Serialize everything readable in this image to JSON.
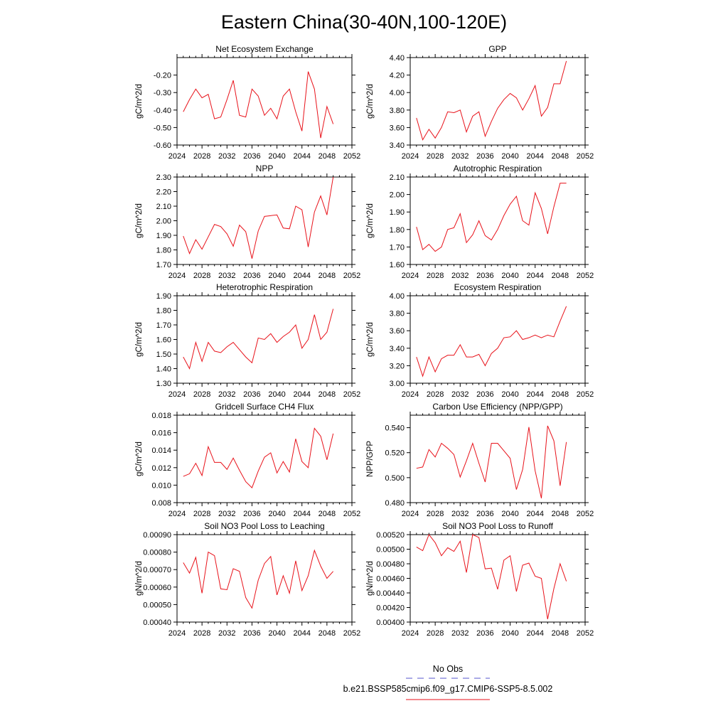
{
  "figure": {
    "title": "Eastern China(30-40N,100-120E)",
    "legend": {
      "obs_label": "No Obs",
      "obs_color": "#5555cc",
      "model_label": "b.e21.BSSP585cmip6.f09_g17.CMIP6-SSP5-8.5.002",
      "model_color": "#e8121a"
    }
  },
  "chart_data": [
    {
      "type": "line",
      "title": "Net Ecosystem Exchange",
      "ylabel": "gC/m^2/d",
      "xlim": [
        2024,
        2052
      ],
      "ylim": [
        -0.6,
        -0.1
      ],
      "xticks": [
        "2024",
        "2028",
        "2032",
        "2036",
        "2040",
        "2044",
        "2048",
        "2052"
      ],
      "yticks": [
        "-0.60",
        "-0.50",
        "-0.40",
        "-0.30",
        "-0.20"
      ],
      "ytick_values": [
        -0.6,
        -0.5,
        -0.4,
        -0.3,
        -0.2
      ],
      "x": [
        2025,
        2026,
        2027,
        2028,
        2029,
        2030,
        2031,
        2032,
        2033,
        2034,
        2035,
        2036,
        2037,
        2038,
        2039,
        2040,
        2041,
        2042,
        2043,
        2044,
        2045,
        2046,
        2047,
        2048,
        2049
      ],
      "series": [
        {
          "values": [
            -0.41,
            -0.34,
            -0.28,
            -0.33,
            -0.31,
            -0.45,
            -0.44,
            -0.34,
            -0.23,
            -0.43,
            -0.44,
            -0.28,
            -0.32,
            -0.43,
            -0.39,
            -0.45,
            -0.32,
            -0.28,
            -0.41,
            -0.52,
            -0.18,
            -0.28,
            -0.56,
            -0.38,
            -0.48
          ]
        }
      ]
    },
    {
      "type": "line",
      "title": "GPP",
      "ylabel": "gC/m^2/d",
      "xlim": [
        2024,
        2052
      ],
      "ylim": [
        3.4,
        4.4
      ],
      "xticks": [
        "2024",
        "2028",
        "2032",
        "2036",
        "2040",
        "2044",
        "2048",
        "2052"
      ],
      "yticks": [
        "3.40",
        "3.60",
        "3.80",
        "4.00",
        "4.20",
        "4.40"
      ],
      "ytick_values": [
        3.4,
        3.6,
        3.8,
        4.0,
        4.2,
        4.4
      ],
      "x": [
        2025,
        2026,
        2027,
        2028,
        2029,
        2030,
        2031,
        2032,
        2033,
        2034,
        2035,
        2036,
        2037,
        2038,
        2039,
        2040,
        2041,
        2042,
        2043,
        2044,
        2045,
        2046,
        2047,
        2048,
        2049
      ],
      "series": [
        {
          "values": [
            3.71,
            3.46,
            3.58,
            3.48,
            3.6,
            3.78,
            3.77,
            3.8,
            3.55,
            3.73,
            3.78,
            3.5,
            3.67,
            3.82,
            3.92,
            3.99,
            3.94,
            3.8,
            3.93,
            4.08,
            3.73,
            3.83,
            4.1,
            4.1,
            4.36
          ]
        }
      ]
    },
    {
      "type": "line",
      "title": "NPP",
      "ylabel": "gC/m^2/d",
      "xlim": [
        2024,
        2052
      ],
      "ylim": [
        1.7,
        2.3
      ],
      "xticks": [
        "2024",
        "2028",
        "2032",
        "2036",
        "2040",
        "2044",
        "2048",
        "2052"
      ],
      "yticks": [
        "1.70",
        "1.80",
        "1.90",
        "2.00",
        "2.10",
        "2.20",
        "2.30"
      ],
      "ytick_values": [
        1.7,
        1.8,
        1.9,
        2.0,
        2.1,
        2.2,
        2.3
      ],
      "x": [
        2025,
        2026,
        2027,
        2028,
        2029,
        2030,
        2031,
        2032,
        2033,
        2034,
        2035,
        2036,
        2037,
        2038,
        2039,
        2040,
        2041,
        2042,
        2043,
        2044,
        2045,
        2046,
        2047,
        2048,
        2049
      ],
      "series": [
        {
          "values": [
            1.895,
            1.775,
            1.87,
            1.805,
            1.89,
            1.975,
            1.96,
            1.91,
            1.825,
            1.97,
            1.925,
            1.74,
            1.93,
            2.03,
            2.035,
            2.04,
            1.95,
            1.945,
            2.1,
            2.075,
            1.82,
            2.06,
            2.17,
            2.04,
            2.3
          ]
        }
      ]
    },
    {
      "type": "line",
      "title": "Autotrophic Respiration",
      "ylabel": "gC/m^2/d",
      "xlim": [
        2024,
        2052
      ],
      "ylim": [
        1.6,
        2.1
      ],
      "xticks": [
        "2024",
        "2028",
        "2032",
        "2036",
        "2040",
        "2044",
        "2048",
        "2052"
      ],
      "yticks": [
        "1.60",
        "1.70",
        "1.80",
        "1.90",
        "2.00",
        "2.10"
      ],
      "ytick_values": [
        1.6,
        1.7,
        1.8,
        1.9,
        2.0,
        2.1
      ],
      "x": [
        2025,
        2026,
        2027,
        2028,
        2029,
        2030,
        2031,
        2032,
        2033,
        2034,
        2035,
        2036,
        2037,
        2038,
        2039,
        2040,
        2041,
        2042,
        2043,
        2044,
        2045,
        2046,
        2047,
        2048,
        2049
      ],
      "series": [
        {
          "values": [
            1.815,
            1.685,
            1.715,
            1.675,
            1.7,
            1.8,
            1.81,
            1.89,
            1.725,
            1.77,
            1.85,
            1.765,
            1.74,
            1.8,
            1.88,
            1.945,
            1.99,
            1.85,
            1.825,
            2.01,
            1.92,
            1.775,
            1.93,
            2.065,
            2.065
          ]
        }
      ]
    },
    {
      "type": "line",
      "title": "Heterotrophic Respiration",
      "ylabel": "gC/m^2/d",
      "xlim": [
        2024,
        2052
      ],
      "ylim": [
        1.3,
        1.9
      ],
      "xticks": [
        "2024",
        "2028",
        "2032",
        "2036",
        "2040",
        "2044",
        "2048",
        "2052"
      ],
      "yticks": [
        "1.30",
        "1.40",
        "1.50",
        "1.60",
        "1.70",
        "1.80",
        "1.90"
      ],
      "ytick_values": [
        1.3,
        1.4,
        1.5,
        1.6,
        1.7,
        1.8,
        1.9
      ],
      "x": [
        2025,
        2026,
        2027,
        2028,
        2029,
        2030,
        2031,
        2032,
        2033,
        2034,
        2035,
        2036,
        2037,
        2038,
        2039,
        2040,
        2041,
        2042,
        2043,
        2044,
        2045,
        2046,
        2047,
        2048,
        2049
      ],
      "series": [
        {
          "values": [
            1.48,
            1.4,
            1.58,
            1.45,
            1.58,
            1.52,
            1.51,
            1.55,
            1.58,
            1.53,
            1.48,
            1.44,
            1.61,
            1.6,
            1.64,
            1.58,
            1.62,
            1.65,
            1.7,
            1.54,
            1.6,
            1.77,
            1.6,
            1.65,
            1.81
          ]
        }
      ]
    },
    {
      "type": "line",
      "title": "Ecosystem Respiration",
      "ylabel": "gC/m^2/d",
      "xlim": [
        2024,
        2052
      ],
      "ylim": [
        3.0,
        4.0
      ],
      "xticks": [
        "2024",
        "2028",
        "2032",
        "2036",
        "2040",
        "2044",
        "2048",
        "2052"
      ],
      "yticks": [
        "3.00",
        "3.20",
        "3.40",
        "3.60",
        "3.80",
        "4.00"
      ],
      "ytick_values": [
        3.0,
        3.2,
        3.4,
        3.6,
        3.8,
        4.0
      ],
      "x": [
        2025,
        2026,
        2027,
        2028,
        2029,
        2030,
        2031,
        2032,
        2033,
        2034,
        2035,
        2036,
        2037,
        2038,
        2039,
        2040,
        2041,
        2042,
        2043,
        2044,
        2045,
        2046,
        2047,
        2048,
        2049
      ],
      "series": [
        {
          "values": [
            3.3,
            3.08,
            3.3,
            3.13,
            3.28,
            3.32,
            3.32,
            3.44,
            3.3,
            3.3,
            3.33,
            3.2,
            3.34,
            3.4,
            3.52,
            3.53,
            3.6,
            3.5,
            3.52,
            3.55,
            3.52,
            3.55,
            3.53,
            3.71,
            3.88
          ]
        }
      ]
    },
    {
      "type": "line",
      "title": "Gridcell Surface CH4 Flux",
      "ylabel": "gC/m^2/d",
      "xlim": [
        2024,
        2052
      ],
      "ylim": [
        0.008,
        0.018
      ],
      "xticks": [
        "2024",
        "2028",
        "2032",
        "2036",
        "2040",
        "2044",
        "2048",
        "2052"
      ],
      "yticks": [
        "0.008",
        "0.010",
        "0.012",
        "0.014",
        "0.016",
        "0.018"
      ],
      "ytick_values": [
        0.008,
        0.01,
        0.012,
        0.014,
        0.016,
        0.018
      ],
      "x": [
        2025,
        2026,
        2027,
        2028,
        2029,
        2030,
        2031,
        2032,
        2033,
        2034,
        2035,
        2036,
        2037,
        2038,
        2039,
        2040,
        2041,
        2042,
        2043,
        2044,
        2045,
        2046,
        2047,
        2048,
        2049
      ],
      "series": [
        {
          "values": [
            0.011,
            0.0113,
            0.0125,
            0.0111,
            0.0144,
            0.0126,
            0.0126,
            0.0118,
            0.0131,
            0.0117,
            0.0104,
            0.0097,
            0.0116,
            0.0132,
            0.0137,
            0.0114,
            0.0127,
            0.0115,
            0.0153,
            0.0127,
            0.012,
            0.0165,
            0.0156,
            0.0129,
            0.0159
          ]
        }
      ]
    },
    {
      "type": "line",
      "title": "Carbon Use Efficiency (NPP/GPP)",
      "ylabel": "NPP/GPP",
      "xlim": [
        2024,
        2052
      ],
      "ylim": [
        0.48,
        0.55
      ],
      "xticks": [
        "2024",
        "2028",
        "2032",
        "2036",
        "2040",
        "2044",
        "2048",
        "2052"
      ],
      "yticks": [
        "0.480",
        "0.500",
        "0.520",
        "0.540"
      ],
      "ytick_values": [
        0.48,
        0.5,
        0.52,
        0.54
      ],
      "x": [
        2025,
        2026,
        2027,
        2028,
        2029,
        2030,
        2031,
        2032,
        2033,
        2034,
        2035,
        2036,
        2037,
        2038,
        2039,
        2040,
        2041,
        2042,
        2043,
        2044,
        2045,
        2046,
        2047,
        2048,
        2049
      ],
      "series": [
        {
          "values": [
            0.5075,
            0.5085,
            0.5225,
            0.5165,
            0.5275,
            0.5235,
            0.5185,
            0.5005,
            0.5135,
            0.5275,
            0.5115,
            0.4965,
            0.5275,
            0.5275,
            0.5215,
            0.5155,
            0.4905,
            0.5065,
            0.5405,
            0.5055,
            0.4835,
            0.5415,
            0.5295,
            0.4935,
            0.5285
          ]
        }
      ]
    },
    {
      "type": "line",
      "title": "Soil NO3 Pool Loss to Leaching",
      "ylabel": "gN/m^2/d",
      "xlim": [
        2024,
        2052
      ],
      "ylim": [
        0.0004,
        0.0009
      ],
      "xticks": [
        "2024",
        "2028",
        "2032",
        "2036",
        "2040",
        "2044",
        "2048",
        "2052"
      ],
      "yticks": [
        "0.00040",
        "0.00050",
        "0.00060",
        "0.00070",
        "0.00080",
        "0.00090"
      ],
      "ytick_values": [
        0.0004,
        0.0005,
        0.0006,
        0.0007,
        0.0008,
        0.0009
      ],
      "x": [
        2025,
        2026,
        2027,
        2028,
        2029,
        2030,
        2031,
        2032,
        2033,
        2034,
        2035,
        2036,
        2037,
        2038,
        2039,
        2040,
        2041,
        2042,
        2043,
        2044,
        2045,
        2046,
        2047,
        2048,
        2049
      ],
      "series": [
        {
          "values": [
            0.00074,
            0.00068,
            0.00077,
            0.000565,
            0.0008,
            0.00078,
            0.00059,
            0.000585,
            0.000705,
            0.00069,
            0.00054,
            0.00048,
            0.00064,
            0.000735,
            0.000775,
            0.000555,
            0.000665,
            0.000565,
            0.00075,
            0.00058,
            0.000665,
            0.00081,
            0.00072,
            0.00065,
            0.00069
          ]
        }
      ]
    },
    {
      "type": "line",
      "title": "Soil NO3 Pool Loss to Runoff",
      "ylabel": "gN/m^2/d",
      "xlim": [
        2024,
        2052
      ],
      "ylim": [
        0.004,
        0.0052
      ],
      "xticks": [
        "2024",
        "2028",
        "2032",
        "2036",
        "2040",
        "2044",
        "2048",
        "2052"
      ],
      "yticks": [
        "0.00400",
        "0.00420",
        "0.00440",
        "0.00460",
        "0.00480",
        "0.00500",
        "0.00520"
      ],
      "ytick_values": [
        0.004,
        0.0042,
        0.0044,
        0.0046,
        0.0048,
        0.005,
        0.0052
      ],
      "x": [
        2025,
        2026,
        2027,
        2028,
        2029,
        2030,
        2031,
        2032,
        2033,
        2034,
        2035,
        2036,
        2037,
        2038,
        2039,
        2040,
        2041,
        2042,
        2043,
        2044,
        2045,
        2046,
        2047,
        2048,
        2049
      ],
      "series": [
        {
          "values": [
            0.00503,
            0.00498,
            0.0052,
            0.00509,
            0.00491,
            0.00502,
            0.00497,
            0.00511,
            0.00468,
            0.0052,
            0.00516,
            0.00473,
            0.00474,
            0.00445,
            0.00485,
            0.00491,
            0.00442,
            0.00478,
            0.00481,
            0.00463,
            0.0046,
            0.00404,
            0.00446,
            0.0048,
            0.00456
          ]
        }
      ]
    }
  ]
}
